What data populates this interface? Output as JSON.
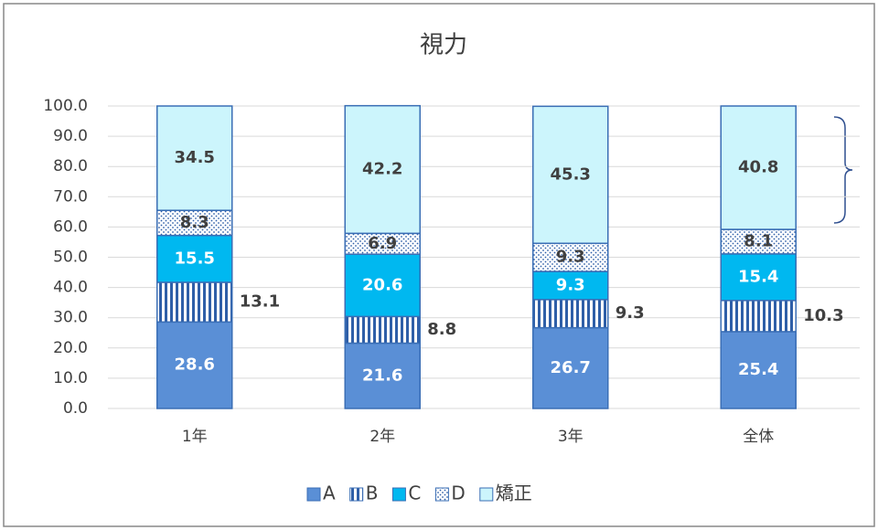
{
  "chart_data": {
    "type": "stacked_bar",
    "title": "視力",
    "categories": [
      "1年",
      "2年",
      "3年",
      "全体"
    ],
    "series": [
      {
        "name": "A",
        "color": "#5a8fd6",
        "values": [
          28.6,
          21.6,
          26.7,
          25.4
        ]
      },
      {
        "name": "B",
        "color": "#2f5fa8",
        "pattern": "stripes",
        "values": [
          13.1,
          8.8,
          9.3,
          10.3
        ]
      },
      {
        "name": "C",
        "color": "#00b8f0",
        "values": [
          15.5,
          20.6,
          9.3,
          15.4
        ]
      },
      {
        "name": "D",
        "color": "#2f5fa8",
        "pattern": "dots",
        "values": [
          8.3,
          6.9,
          9.3,
          8.1
        ]
      },
      {
        "name": "矯正",
        "color": "#ccf5fc",
        "values": [
          34.5,
          42.2,
          45.3,
          40.8
        ]
      }
    ],
    "ylim": [
      0,
      100
    ],
    "yticks": [
      {
        "value": 0,
        "label": "0.0"
      },
      {
        "value": 10,
        "label": "10.0"
      },
      {
        "value": 20,
        "label": "20.0"
      },
      {
        "value": 30,
        "label": "30.0"
      },
      {
        "value": 40,
        "label": "40.0"
      },
      {
        "value": 50,
        "label": "50.0"
      },
      {
        "value": 60,
        "label": "60.0"
      },
      {
        "value": 70,
        "label": "70.0"
      },
      {
        "value": 80,
        "label": "80.0"
      },
      {
        "value": 90,
        "label": "90.0"
      },
      {
        "value": 100,
        "label": "100.0"
      }
    ],
    "grid": true,
    "legend": "bottom"
  }
}
